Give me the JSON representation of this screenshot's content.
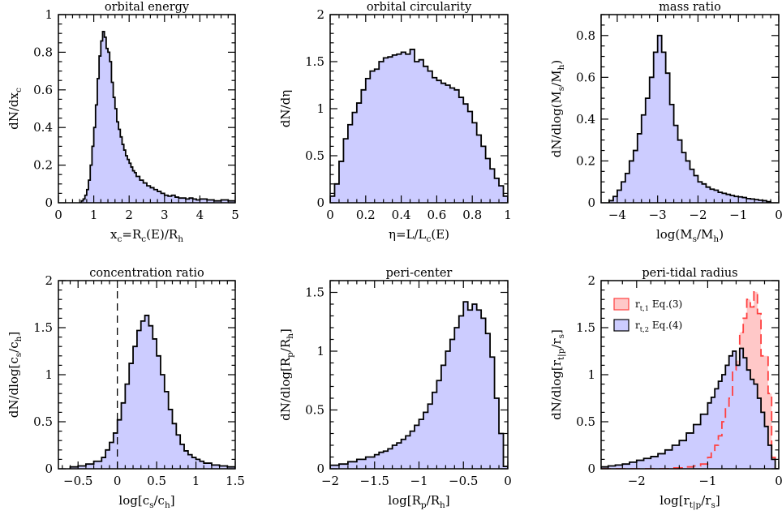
{
  "chart_data": [
    {
      "type": "histogram",
      "title": "orbital energy",
      "xlabel": "x_c=R_c(E)/R_h",
      "ylabel": "dN/dx_c",
      "xlim": [
        0,
        5
      ],
      "ylim": [
        0,
        1
      ],
      "xticks": [
        0,
        1,
        2,
        3,
        4,
        5
      ],
      "yticks": [
        0,
        0.2,
        0.4,
        0.6,
        0.8,
        1
      ],
      "xticklabels": [
        "0",
        "1",
        "2",
        "3",
        "4",
        "5"
      ],
      "yticklabels": [
        "0",
        "0.2",
        "0.4",
        "0.6",
        "0.8",
        "1"
      ],
      "series": [
        {
          "style": "filled",
          "edges": [
            0.6,
            0.65,
            0.7,
            0.75,
            0.8,
            0.85,
            0.9,
            0.95,
            1.0,
            1.05,
            1.1,
            1.15,
            1.2,
            1.25,
            1.3,
            1.35,
            1.4,
            1.45,
            1.5,
            1.55,
            1.6,
            1.65,
            1.7,
            1.75,
            1.8,
            1.85,
            1.9,
            1.95,
            2.0,
            2.05,
            2.1,
            2.15,
            2.2,
            2.3,
            2.4,
            2.5,
            2.6,
            2.7,
            2.8,
            2.9,
            3.0,
            3.1,
            3.2,
            3.3,
            3.4,
            3.5,
            3.6,
            3.7,
            3.8,
            3.9,
            4.0,
            4.2,
            4.4,
            4.6,
            4.8,
            5.0
          ],
          "values": [
            0.0,
            0.01,
            0.02,
            0.04,
            0.07,
            0.12,
            0.2,
            0.3,
            0.4,
            0.52,
            0.66,
            0.78,
            0.86,
            0.91,
            0.88,
            0.82,
            0.8,
            0.75,
            0.64,
            0.56,
            0.5,
            0.43,
            0.39,
            0.35,
            0.31,
            0.28,
            0.25,
            0.23,
            0.21,
            0.19,
            0.17,
            0.16,
            0.14,
            0.12,
            0.105,
            0.09,
            0.08,
            0.07,
            0.06,
            0.05,
            0.04,
            0.035,
            0.04,
            0.03,
            0.025,
            0.025,
            0.02,
            0.025,
            0.02,
            0.015,
            0.02,
            0.015,
            0.01,
            0.015,
            0.01
          ]
        }
      ]
    },
    {
      "type": "histogram",
      "title": "orbital circularity",
      "xlabel": "η=L/L_c(E)",
      "ylabel": "dN/dη",
      "xlim": [
        0,
        1
      ],
      "ylim": [
        0,
        2
      ],
      "xticks": [
        0,
        0.2,
        0.4,
        0.6,
        0.8,
        1
      ],
      "yticks": [
        0,
        0.5,
        1,
        1.5,
        2
      ],
      "xticklabels": [
        "0",
        "0.2",
        "0.4",
        "0.6",
        "0.8",
        "1"
      ],
      "yticklabels": [
        "0",
        "0.5",
        "1",
        "1.5",
        "2"
      ],
      "series": [
        {
          "style": "filled",
          "edges": [
            0,
            0.025,
            0.05,
            0.075,
            0.1,
            0.125,
            0.15,
            0.175,
            0.2,
            0.225,
            0.25,
            0.275,
            0.3,
            0.325,
            0.35,
            0.375,
            0.4,
            0.425,
            0.45,
            0.475,
            0.5,
            0.525,
            0.55,
            0.575,
            0.6,
            0.625,
            0.65,
            0.675,
            0.7,
            0.725,
            0.75,
            0.775,
            0.8,
            0.825,
            0.85,
            0.875,
            0.9,
            0.925,
            0.95,
            0.975,
            1.0
          ],
          "values": [
            0.07,
            0.2,
            0.44,
            0.68,
            0.83,
            0.96,
            1.06,
            1.2,
            1.32,
            1.4,
            1.42,
            1.5,
            1.54,
            1.55,
            1.57,
            1.58,
            1.6,
            1.58,
            1.63,
            1.5,
            1.52,
            1.45,
            1.4,
            1.33,
            1.3,
            1.27,
            1.25,
            1.22,
            1.2,
            1.12,
            1.05,
            0.97,
            0.85,
            0.72,
            0.6,
            0.47,
            0.36,
            0.26,
            0.18,
            0.07
          ]
        }
      ]
    },
    {
      "type": "histogram",
      "title": "mass ratio",
      "xlabel": "log(M_s/M_h)",
      "ylabel": "dN/dlog(M_s/M_h)",
      "xlim": [
        -4.4,
        0
      ],
      "ylim": [
        0,
        0.9
      ],
      "xticks": [
        -4,
        -3,
        -2,
        -1,
        0
      ],
      "yticks": [
        0,
        0.2,
        0.4,
        0.6,
        0.8
      ],
      "xticklabels": [
        "−4",
        "−3",
        "−2",
        "−1",
        "0"
      ],
      "yticklabels": [
        "0",
        "0.2",
        "0.4",
        "0.6",
        "0.8"
      ],
      "series": [
        {
          "style": "filled",
          "edges": [
            -4.2,
            -4.1,
            -4.0,
            -3.9,
            -3.8,
            -3.7,
            -3.6,
            -3.5,
            -3.4,
            -3.3,
            -3.2,
            -3.1,
            -3.0,
            -2.9,
            -2.8,
            -2.7,
            -2.6,
            -2.5,
            -2.4,
            -2.3,
            -2.2,
            -2.1,
            -2.0,
            -1.9,
            -1.8,
            -1.7,
            -1.6,
            -1.5,
            -1.4,
            -1.3,
            -1.2,
            -1.1,
            -1.0,
            -0.9,
            -0.8,
            -0.7,
            -0.6,
            -0.5,
            -0.4,
            -0.3,
            -0.2
          ],
          "values": [
            0.01,
            0.03,
            0.06,
            0.1,
            0.14,
            0.2,
            0.25,
            0.33,
            0.42,
            0.5,
            0.6,
            0.72,
            0.8,
            0.72,
            0.62,
            0.47,
            0.37,
            0.3,
            0.24,
            0.2,
            0.16,
            0.13,
            0.1,
            0.09,
            0.075,
            0.065,
            0.06,
            0.05,
            0.045,
            0.04,
            0.035,
            0.03,
            0.028,
            0.025,
            0.02,
            0.018,
            0.015,
            0.012,
            0.01,
            0.005
          ]
        }
      ]
    },
    {
      "type": "histogram",
      "title": "concentration ratio",
      "xlabel": "log[c_s/c_h]",
      "ylabel": "dN/dlog[c_s/c_h]",
      "xlim": [
        -0.75,
        1.5
      ],
      "ylim": [
        0,
        2
      ],
      "xticks": [
        -0.5,
        0,
        0.5,
        1,
        1.5
      ],
      "yticks": [
        0,
        0.5,
        1,
        1.5,
        2
      ],
      "xticklabels": [
        "−0.5",
        "0",
        "0.5",
        "1",
        "1.5"
      ],
      "yticklabels": [
        "0",
        "0.5",
        "1",
        "1.5",
        "2"
      ],
      "vline": {
        "x": 0,
        "y_top": 1.9,
        "style": "dashed"
      },
      "series": [
        {
          "style": "filled",
          "edges": [
            -0.6,
            -0.5,
            -0.4,
            -0.3,
            -0.2,
            -0.15,
            -0.1,
            -0.05,
            0.0,
            0.05,
            0.1,
            0.15,
            0.2,
            0.25,
            0.3,
            0.35,
            0.4,
            0.45,
            0.5,
            0.55,
            0.6,
            0.65,
            0.7,
            0.75,
            0.8,
            0.85,
            0.9,
            0.95,
            1.0,
            1.05,
            1.1,
            1.2,
            1.3,
            1.4,
            1.5
          ],
          "values": [
            0.02,
            0.03,
            0.05,
            0.08,
            0.12,
            0.2,
            0.28,
            0.38,
            0.52,
            0.7,
            0.9,
            1.12,
            1.3,
            1.47,
            1.57,
            1.63,
            1.52,
            1.38,
            1.2,
            1.0,
            0.82,
            0.63,
            0.48,
            0.36,
            0.26,
            0.19,
            0.15,
            0.12,
            0.1,
            0.08,
            0.06,
            0.04,
            0.03,
            0.02
          ]
        }
      ]
    },
    {
      "type": "histogram",
      "title": "peri-center",
      "xlabel": "log[R_p/R_h]",
      "ylabel": "dN/dlog[R_p/R_h]",
      "xlim": [
        -2,
        0
      ],
      "ylim": [
        0,
        1.6
      ],
      "xticks": [
        -2,
        -1.5,
        -1,
        -0.5,
        0
      ],
      "yticks": [
        0,
        0.5,
        1,
        1.5
      ],
      "xticklabels": [
        "−2",
        "−1.5",
        "−1",
        "−0.5",
        "0"
      ],
      "yticklabels": [
        "0",
        "0.5",
        "1",
        "1.5"
      ],
      "series": [
        {
          "style": "filled",
          "edges": [
            -2.0,
            -1.9,
            -1.8,
            -1.7,
            -1.6,
            -1.5,
            -1.45,
            -1.4,
            -1.35,
            -1.3,
            -1.25,
            -1.2,
            -1.15,
            -1.1,
            -1.05,
            -1.0,
            -0.95,
            -0.9,
            -0.85,
            -0.8,
            -0.75,
            -0.7,
            -0.65,
            -0.6,
            -0.55,
            -0.5,
            -0.45,
            -0.4,
            -0.35,
            -0.3,
            -0.25,
            -0.2,
            -0.15,
            -0.1,
            -0.05,
            0.0
          ],
          "values": [
            0.03,
            0.04,
            0.06,
            0.08,
            0.1,
            0.12,
            0.14,
            0.15,
            0.17,
            0.2,
            0.22,
            0.25,
            0.28,
            0.32,
            0.37,
            0.42,
            0.48,
            0.55,
            0.65,
            0.75,
            0.88,
            1.0,
            1.1,
            1.2,
            1.3,
            1.42,
            1.35,
            1.4,
            1.35,
            1.28,
            1.15,
            0.95,
            0.6,
            0.3,
            0.02
          ]
        }
      ]
    },
    {
      "type": "histogram",
      "title": "peri-tidal radius",
      "xlabel": "log[r_t|p/r_s]",
      "ylabel": "dN/dlog[r_t|p/r_s]",
      "xlim": [
        -2.5,
        0
      ],
      "ylim": [
        0,
        2
      ],
      "xticks": [
        -2,
        -1,
        0
      ],
      "yticks": [
        0,
        0.5,
        1,
        1.5,
        2
      ],
      "xticklabels": [
        "−2",
        "−1",
        "0"
      ],
      "yticklabels": [
        "0",
        "0.5",
        "1",
        "1.5",
        "2"
      ],
      "legend": {
        "location": "top-left"
      },
      "series": [
        {
          "name": "r_t,1 Eq.(3)",
          "style": "dashed-red",
          "color": "#ff4040",
          "fill": "#ffc8c8",
          "edges": [
            -2.5,
            -2.4,
            -2.3,
            -2.2,
            -2.1,
            -2.0,
            -1.9,
            -1.8,
            -1.7,
            -1.6,
            -1.5,
            -1.4,
            -1.3,
            -1.2,
            -1.1,
            -1.0,
            -0.95,
            -0.9,
            -0.85,
            -0.8,
            -0.75,
            -0.7,
            -0.65,
            -0.6,
            -0.55,
            -0.5,
            -0.45,
            -0.4,
            -0.35,
            -0.3,
            -0.25,
            -0.2,
            -0.15,
            -0.1,
            -0.05,
            0.0
          ],
          "values": [
            0.0,
            0.0,
            0.0,
            0.0,
            0.0,
            0.0,
            0.0,
            0.0,
            0.0,
            0.0,
            0.01,
            0.01,
            0.02,
            0.03,
            0.05,
            0.12,
            0.18,
            0.25,
            0.35,
            0.5,
            0.65,
            0.75,
            1.05,
            1.15,
            1.45,
            1.6,
            1.8,
            1.72,
            1.88,
            1.65,
            1.2,
            1.2,
            0.8,
            0.12,
            0.0
          ]
        },
        {
          "name": "r_t,2 Eq.(4)",
          "style": "filled",
          "color": "#000000",
          "fill": "#ccccff",
          "edges": [
            -2.5,
            -2.4,
            -2.3,
            -2.2,
            -2.1,
            -2.0,
            -1.9,
            -1.8,
            -1.7,
            -1.6,
            -1.5,
            -1.4,
            -1.3,
            -1.2,
            -1.1,
            -1.0,
            -0.95,
            -0.9,
            -0.85,
            -0.8,
            -0.75,
            -0.7,
            -0.65,
            -0.6,
            -0.55,
            -0.5,
            -0.45,
            -0.4,
            -0.35,
            -0.3,
            -0.25,
            -0.2,
            -0.15,
            -0.1,
            -0.05,
            0.0
          ],
          "values": [
            0.02,
            0.03,
            0.04,
            0.05,
            0.07,
            0.09,
            0.11,
            0.13,
            0.16,
            0.2,
            0.25,
            0.3,
            0.38,
            0.47,
            0.58,
            0.7,
            0.76,
            0.85,
            0.93,
            1.0,
            1.1,
            1.2,
            1.25,
            1.1,
            1.28,
            1.18,
            1.05,
            0.95,
            0.9,
            0.75,
            0.6,
            0.45,
            0.25,
            0.1,
            0.0
          ]
        }
      ]
    }
  ]
}
